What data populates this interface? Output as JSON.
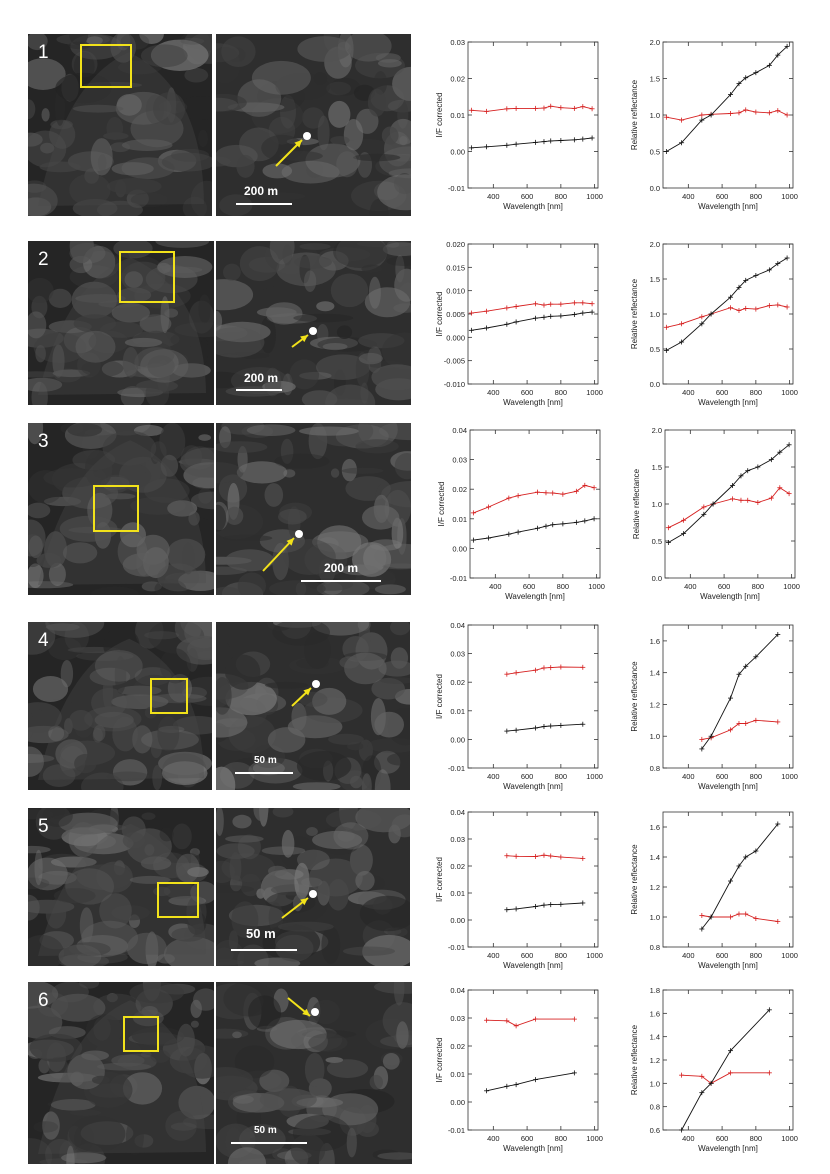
{
  "rows": [
    {
      "number": "1",
      "scale_label": "200 m",
      "chart_data": [
        {
          "type": "line",
          "xlabel": "Wavelength [nm]",
          "ylabel": "I/F corrected",
          "xlim": [
            250,
            1020
          ],
          "ylim": [
            -0.01,
            0.03
          ],
          "yticks": [
            "-0.01",
            "0.00",
            "0.01",
            "0.02",
            "0.03"
          ],
          "xticks": [
            400,
            600,
            800,
            1000
          ],
          "series": [
            {
              "color": "#d62020",
              "x": [
                270,
                360,
                480,
                535,
                650,
                700,
                740,
                800,
                880,
                930,
                985
              ],
              "y": [
                0.0113,
                0.011,
                0.0117,
                0.0118,
                0.0118,
                0.0119,
                0.0124,
                0.012,
                0.0118,
                0.0123,
                0.0117
              ]
            },
            {
              "color": "#111111",
              "x": [
                270,
                360,
                480,
                535,
                650,
                700,
                740,
                800,
                880,
                930,
                985
              ],
              "y": [
                0.001,
                0.0013,
                0.0017,
                0.002,
                0.0025,
                0.0027,
                0.0029,
                0.003,
                0.0032,
                0.0034,
                0.0037
              ]
            }
          ]
        },
        {
          "type": "line",
          "xlabel": "Wavelength [nm]",
          "ylabel": "Relative reflectance",
          "xlim": [
            250,
            1020
          ],
          "ylim": [
            0.0,
            2.0
          ],
          "yticks": [
            "0.0",
            "0.5",
            "1.0",
            "1.5",
            "2.0"
          ],
          "xticks": [
            400,
            600,
            800,
            1000
          ],
          "series": [
            {
              "color": "#d62020",
              "x": [
                270,
                360,
                480,
                535,
                650,
                700,
                740,
                800,
                880,
                930,
                985
              ],
              "y": [
                0.97,
                0.93,
                1.0,
                1.01,
                1.02,
                1.03,
                1.07,
                1.04,
                1.03,
                1.06,
                1.0
              ]
            },
            {
              "color": "#111111",
              "x": [
                270,
                360,
                480,
                535,
                650,
                700,
                740,
                800,
                880,
                930,
                985
              ],
              "y": [
                0.5,
                0.62,
                0.93,
                1.0,
                1.28,
                1.43,
                1.51,
                1.58,
                1.68,
                1.82,
                1.94
              ]
            }
          ]
        }
      ]
    },
    {
      "number": "2",
      "scale_label": "200 m",
      "chart_data": [
        {
          "type": "line",
          "xlabel": "Wavelength [nm]",
          "ylabel": "I/F corrected",
          "xlim": [
            250,
            1020
          ],
          "ylim": [
            -0.01,
            0.02
          ],
          "yticks": [
            "-0.010",
            "-0.005",
            "0.000",
            "0.005",
            "0.010",
            "0.015",
            "0.020"
          ],
          "xticks": [
            400,
            600,
            800,
            1000
          ],
          "series": [
            {
              "color": "#d62020",
              "x": [
                270,
                360,
                480,
                535,
                650,
                700,
                740,
                800,
                880,
                930,
                985
              ],
              "y": [
                0.0052,
                0.0056,
                0.0063,
                0.0066,
                0.0072,
                0.0069,
                0.0071,
                0.0071,
                0.0074,
                0.0074,
                0.0072
              ]
            },
            {
              "color": "#111111",
              "x": [
                270,
                360,
                480,
                535,
                650,
                700,
                740,
                800,
                880,
                930,
                985
              ],
              "y": [
                0.0015,
                0.002,
                0.0028,
                0.0033,
                0.0041,
                0.0043,
                0.0045,
                0.0046,
                0.0049,
                0.0052,
                0.0054
              ]
            }
          ]
        },
        {
          "type": "line",
          "xlabel": "Wavelength [nm]",
          "ylabel": "Relative reflectance",
          "xlim": [
            250,
            1020
          ],
          "ylim": [
            0.0,
            2.0
          ],
          "yticks": [
            "0.0",
            "0.5",
            "1.0",
            "1.5",
            "2.0"
          ],
          "xticks": [
            400,
            600,
            800,
            1000
          ],
          "series": [
            {
              "color": "#d62020",
              "x": [
                270,
                360,
                480,
                535,
                650,
                700,
                740,
                800,
                880,
                930,
                985
              ],
              "y": [
                0.81,
                0.86,
                0.96,
                1.0,
                1.09,
                1.05,
                1.08,
                1.07,
                1.12,
                1.13,
                1.1
              ]
            },
            {
              "color": "#111111",
              "x": [
                270,
                360,
                480,
                535,
                650,
                700,
                740,
                800,
                880,
                930,
                985
              ],
              "y": [
                0.48,
                0.6,
                0.86,
                1.0,
                1.24,
                1.38,
                1.48,
                1.55,
                1.63,
                1.72,
                1.8
              ]
            }
          ]
        }
      ]
    },
    {
      "number": "3",
      "scale_label": "200 m",
      "chart_data": [
        {
          "type": "line",
          "xlabel": "Wavelength [nm]",
          "ylabel": "I/F corrected",
          "xlim": [
            250,
            1020
          ],
          "ylim": [
            -0.01,
            0.04
          ],
          "yticks": [
            "-0.01",
            "0.00",
            "0.01",
            "0.02",
            "0.03",
            "0.04"
          ],
          "xticks": [
            400,
            600,
            800,
            1000
          ],
          "series": [
            {
              "color": "#d62020",
              "x": [
                270,
                360,
                480,
                535,
                650,
                700,
                740,
                800,
                880,
                930,
                985
              ],
              "y": [
                0.012,
                0.014,
                0.017,
                0.0178,
                0.019,
                0.0188,
                0.0187,
                0.0183,
                0.0193,
                0.0213,
                0.0205
              ]
            },
            {
              "color": "#111111",
              "x": [
                270,
                360,
                480,
                535,
                650,
                700,
                740,
                800,
                880,
                930,
                985
              ],
              "y": [
                0.0028,
                0.0035,
                0.0048,
                0.0055,
                0.0068,
                0.0075,
                0.008,
                0.0083,
                0.0088,
                0.0093,
                0.01
              ]
            }
          ]
        },
        {
          "type": "line",
          "xlabel": "Wavelength [nm]",
          "ylabel": "Relative reflectance",
          "xlim": [
            250,
            1020
          ],
          "ylim": [
            0.0,
            2.0
          ],
          "yticks": [
            "0.0",
            "0.5",
            "1.0",
            "1.5",
            "2.0"
          ],
          "xticks": [
            400,
            600,
            800,
            1000
          ],
          "series": [
            {
              "color": "#d62020",
              "x": [
                270,
                360,
                480,
                535,
                650,
                700,
                740,
                800,
                880,
                930,
                985
              ],
              "y": [
                0.68,
                0.78,
                0.96,
                1.0,
                1.07,
                1.05,
                1.05,
                1.02,
                1.08,
                1.22,
                1.14
              ]
            },
            {
              "color": "#111111",
              "x": [
                270,
                360,
                480,
                535,
                650,
                700,
                740,
                800,
                880,
                930,
                985
              ],
              "y": [
                0.48,
                0.6,
                0.86,
                1.0,
                1.25,
                1.38,
                1.45,
                1.5,
                1.6,
                1.7,
                1.8
              ]
            }
          ]
        }
      ]
    },
    {
      "number": "4",
      "scale_label": "50 m",
      "chart_data": [
        {
          "type": "line",
          "xlabel": "Wavelength [nm]",
          "ylabel": "I/F corrected",
          "xlim": [
            250,
            1020
          ],
          "ylim": [
            -0.01,
            0.04
          ],
          "yticks": [
            "-0.01",
            "0.00",
            "0.01",
            "0.02",
            "0.03",
            "0.04"
          ],
          "xticks": [
            400,
            600,
            800,
            1000
          ],
          "series": [
            {
              "color": "#d62020",
              "x": [
                480,
                535,
                650,
                700,
                740,
                800,
                930
              ],
              "y": [
                0.0228,
                0.0233,
                0.0242,
                0.025,
                0.0251,
                0.0253,
                0.0252
              ]
            },
            {
              "color": "#111111",
              "x": [
                480,
                535,
                650,
                700,
                740,
                800,
                930
              ],
              "y": [
                0.0029,
                0.0032,
                0.004,
                0.0045,
                0.0047,
                0.0049,
                0.0053
              ]
            }
          ]
        },
        {
          "type": "line",
          "xlabel": "Wavelength [nm]",
          "ylabel": "Relative reflectance",
          "xlim": [
            250,
            1020
          ],
          "ylim": [
            0.8,
            1.7
          ],
          "yticks": [
            "0.8",
            "1.0",
            "1.2",
            "1.4",
            "1.6"
          ],
          "xticks": [
            400,
            600,
            800,
            1000
          ],
          "series": [
            {
              "color": "#d62020",
              "x": [
                480,
                535,
                650,
                700,
                740,
                800,
                930
              ],
              "y": [
                0.98,
                0.99,
                1.04,
                1.08,
                1.08,
                1.1,
                1.09
              ]
            },
            {
              "color": "#111111",
              "x": [
                480,
                535,
                650,
                700,
                740,
                800,
                930
              ],
              "y": [
                0.92,
                1.0,
                1.24,
                1.39,
                1.44,
                1.5,
                1.64
              ]
            }
          ]
        }
      ]
    },
    {
      "number": "5",
      "scale_label": "50 m",
      "chart_data": [
        {
          "type": "line",
          "xlabel": "Wavelength [nm]",
          "ylabel": "I/F corrected",
          "xlim": [
            250,
            1020
          ],
          "ylim": [
            -0.01,
            0.04
          ],
          "yticks": [
            "-0.01",
            "0.00",
            "0.01",
            "0.02",
            "0.03",
            "0.04"
          ],
          "xticks": [
            400,
            600,
            800,
            1000
          ],
          "series": [
            {
              "color": "#d62020",
              "x": [
                480,
                535,
                650,
                700,
                740,
                800,
                930
              ],
              "y": [
                0.0238,
                0.0236,
                0.0235,
                0.024,
                0.0237,
                0.0233,
                0.0228
              ]
            },
            {
              "color": "#111111",
              "x": [
                480,
                535,
                650,
                700,
                740,
                800,
                930
              ],
              "y": [
                0.0038,
                0.0041,
                0.005,
                0.0055,
                0.0057,
                0.0058,
                0.0063
              ]
            }
          ]
        },
        {
          "type": "line",
          "xlabel": "Wavelength [nm]",
          "ylabel": "Relative reflectance",
          "xlim": [
            250,
            1020
          ],
          "ylim": [
            0.8,
            1.7
          ],
          "yticks": [
            "0.8",
            "1.0",
            "1.2",
            "1.4",
            "1.6"
          ],
          "xticks": [
            400,
            600,
            800,
            1000
          ],
          "series": [
            {
              "color": "#d62020",
              "x": [
                480,
                535,
                650,
                700,
                740,
                800,
                930
              ],
              "y": [
                1.01,
                1.0,
                1.0,
                1.02,
                1.02,
                0.99,
                0.97
              ]
            },
            {
              "color": "#111111",
              "x": [
                480,
                535,
                650,
                700,
                740,
                800,
                930
              ],
              "y": [
                0.92,
                1.0,
                1.24,
                1.34,
                1.4,
                1.44,
                1.62
              ]
            }
          ]
        }
      ]
    },
    {
      "number": "6",
      "scale_label": "50 m",
      "chart_data": [
        {
          "type": "line",
          "xlabel": "Wavelength [nm]",
          "ylabel": "I/F corrected",
          "xlim": [
            250,
            1020
          ],
          "ylim": [
            -0.01,
            0.04
          ],
          "yticks": [
            "-0.01",
            "0.00",
            "0.01",
            "0.02",
            "0.03",
            "0.04"
          ],
          "xticks": [
            400,
            600,
            800,
            1000
          ],
          "series": [
            {
              "color": "#d62020",
              "x": [
                360,
                480,
                535,
                650,
                880
              ],
              "y": [
                0.0292,
                0.029,
                0.0272,
                0.0296,
                0.0296
              ]
            },
            {
              "color": "#111111",
              "x": [
                360,
                480,
                535,
                650,
                880
              ],
              "y": [
                0.004,
                0.0056,
                0.0062,
                0.008,
                0.0104
              ]
            }
          ]
        },
        {
          "type": "line",
          "xlabel": "Wavelength [nm]",
          "ylabel": "Relative reflectance",
          "xlim": [
            250,
            1020
          ],
          "ylim": [
            0.6,
            1.8
          ],
          "yticks": [
            "0.6",
            "0.8",
            "1.0",
            "1.2",
            "1.4",
            "1.6",
            "1.8"
          ],
          "xticks": [
            400,
            600,
            800,
            1000
          ],
          "series": [
            {
              "color": "#d62020",
              "x": [
                360,
                480,
                535,
                650,
                880
              ],
              "y": [
                1.07,
                1.06,
                1.0,
                1.09,
                1.09
              ]
            },
            {
              "color": "#111111",
              "x": [
                360,
                480,
                535,
                650,
                880
              ],
              "y": [
                0.6,
                0.92,
                1.0,
                1.28,
                1.63
              ]
            }
          ]
        }
      ]
    }
  ]
}
